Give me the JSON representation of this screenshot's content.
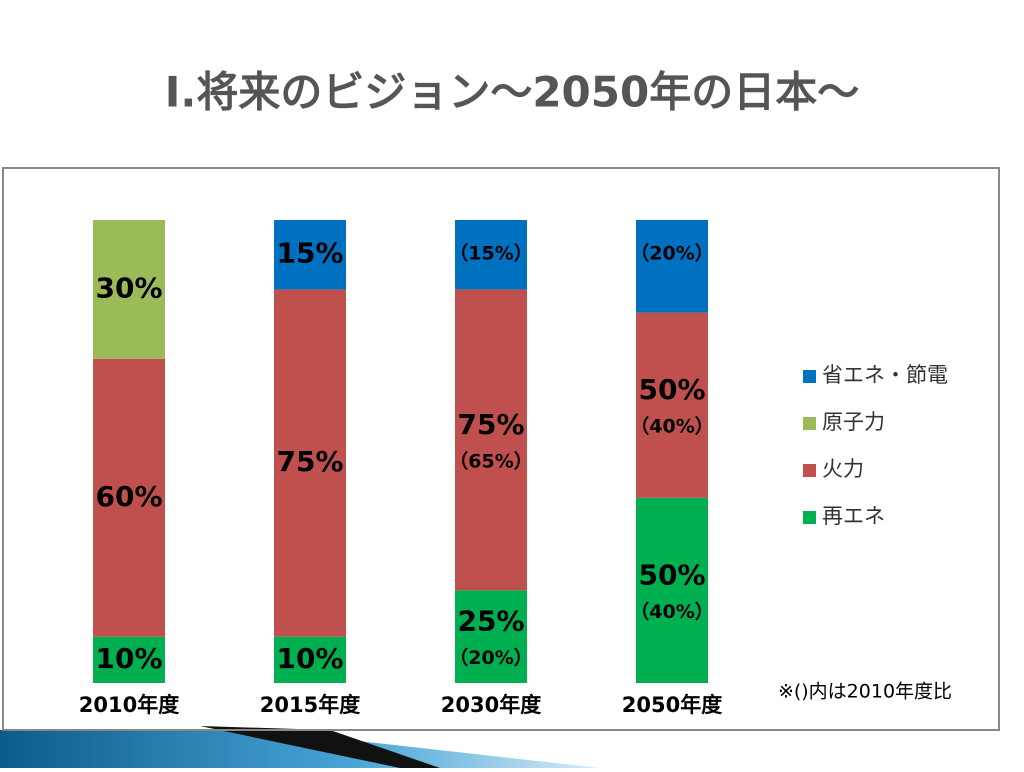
{
  "chart_data": {
    "type": "stacked-bar",
    "title": "Ⅰ.将来のビジョン～2050年の日本～",
    "categories": [
      "2010年度",
      "2015年度",
      "2030年度",
      "2050年度"
    ],
    "ylim": [
      0,
      100
    ],
    "legend": "right",
    "note": "※()内は2010年度比",
    "series": [
      {
        "name": "再エネ",
        "color": "#00b050",
        "values": [
          10,
          10,
          20,
          40
        ],
        "value_labels": [
          "10%",
          "10%",
          "（20%）",
          "（40%）"
        ],
        "current_labels": [
          null,
          null,
          "25%",
          "50%"
        ]
      },
      {
        "name": "火力",
        "color": "#c0504d",
        "values": [
          60,
          75,
          65,
          40
        ],
        "value_labels": [
          "60%",
          "75%",
          "（65%）",
          "（40%）"
        ],
        "current_labels": [
          null,
          null,
          "75%",
          "50%"
        ]
      },
      {
        "name": "原子力",
        "color": "#9bbb59",
        "values": [
          30,
          null,
          null,
          null
        ],
        "value_labels": [
          "30%",
          null,
          null,
          null
        ],
        "current_labels": [
          null,
          null,
          null,
          null
        ]
      },
      {
        "name": "省エネ・節電",
        "color": "#0070c0",
        "values": [
          null,
          15,
          15,
          20
        ],
        "value_labels": [
          null,
          "15%",
          "（15%）",
          "（20%）"
        ],
        "current_labels": [
          null,
          null,
          null,
          null
        ]
      }
    ]
  }
}
